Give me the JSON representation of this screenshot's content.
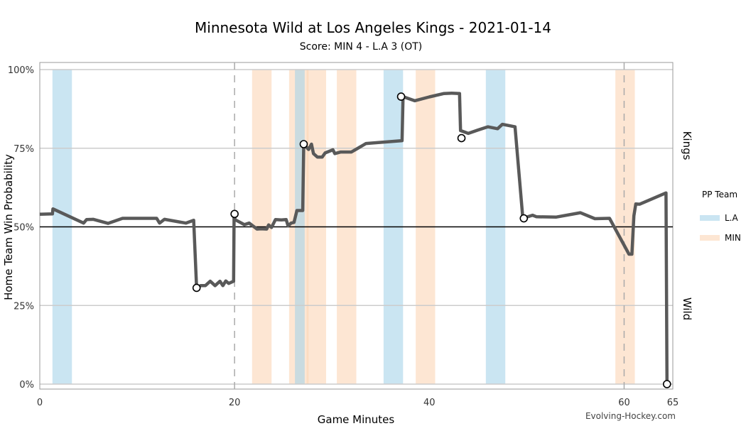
{
  "chart_data": {
    "type": "line",
    "title": "Minnesota Wild at Los Angeles Kings - 2021-01-14",
    "subtitle": "Score: MIN 4 - L.A 3 (OT)",
    "xlabel": "Game Minutes",
    "ylabel": "Home Team Win Probability",
    "xlim": [
      0,
      65
    ],
    "ylim": [
      0,
      1
    ],
    "x_ticks": [
      "0",
      "20",
      "40",
      "60",
      "65"
    ],
    "y_ticks": [
      "0%",
      "25%",
      "50%",
      "75%",
      "100%"
    ],
    "period_lines": [
      20,
      60
    ],
    "reference_line": 0.5,
    "grid": true,
    "side_labels": {
      "top": "Kings",
      "bottom": "Wild"
    },
    "legend": {
      "title": "PP Team",
      "position": "right",
      "entries": [
        {
          "label": "L.A",
          "color": "#a6d3ea"
        },
        {
          "label": "MIN",
          "color": "#fbd5b5"
        }
      ]
    },
    "power_plays": [
      {
        "team": "L.A",
        "start": 1.3,
        "end": 3.3
      },
      {
        "team": "MIN",
        "start": 21.8,
        "end": 23.8
      },
      {
        "team": "MIN",
        "start": 25.6,
        "end": 27.6
      },
      {
        "team": "L.A",
        "start": 26.2,
        "end": 27.2
      },
      {
        "team": "MIN",
        "start": 27.4,
        "end": 29.4
      },
      {
        "team": "MIN",
        "start": 30.5,
        "end": 32.5
      },
      {
        "team": "L.A",
        "start": 35.3,
        "end": 37.3
      },
      {
        "team": "MIN",
        "start": 38.6,
        "end": 40.6
      },
      {
        "team": "L.A",
        "start": 45.8,
        "end": 47.8
      },
      {
        "team": "MIN",
        "start": 59.1,
        "end": 61.1
      }
    ],
    "series": [
      {
        "line_color": "#595959",
        "x": [
          0,
          1.3,
          1.35,
          4.5,
          4.8,
          5.5,
          7,
          8.5,
          12,
          12.3,
          12.8,
          15,
          15.8,
          16.1,
          16.5,
          17,
          17.5,
          18,
          18.5,
          18.8,
          19.1,
          19.4,
          19.9,
          19.95,
          20.05,
          21,
          21.5,
          22.3,
          22.7,
          23.3,
          23.5,
          23.8,
          24.2,
          24.8,
          25.3,
          25.5,
          25.8,
          26.1,
          26.4,
          27.0,
          27.1,
          27.6,
          27.9,
          28.1,
          28.5,
          29.0,
          29.3,
          30.1,
          30.3,
          30.9,
          32,
          33.5,
          37.2,
          37.3,
          38.5,
          40,
          41.5,
          42.3,
          43.1,
          43.2,
          44,
          45,
          46,
          47,
          47.5,
          48.8,
          49.6,
          50.6,
          51,
          53,
          55.5,
          57,
          58.5,
          60.5,
          60.8,
          61.0,
          61.2,
          61.6,
          64.3,
          64.4
        ],
        "y": [
          0.54,
          0.541,
          0.557,
          0.512,
          0.523,
          0.524,
          0.511,
          0.527,
          0.527,
          0.512,
          0.524,
          0.512,
          0.521,
          0.306,
          0.313,
          0.313,
          0.327,
          0.313,
          0.327,
          0.313,
          0.328,
          0.32,
          0.327,
          0.541,
          0.523,
          0.507,
          0.512,
          0.493,
          0.494,
          0.493,
          0.506,
          0.498,
          0.523,
          0.522,
          0.523,
          0.503,
          0.512,
          0.514,
          0.552,
          0.552,
          0.763,
          0.746,
          0.763,
          0.733,
          0.722,
          0.722,
          0.735,
          0.745,
          0.733,
          0.738,
          0.738,
          0.765,
          0.774,
          0.914,
          0.901,
          0.913,
          0.924,
          0.925,
          0.924,
          0.806,
          0.797,
          0.808,
          0.818,
          0.812,
          0.826,
          0.818,
          0.527,
          0.537,
          0.532,
          0.531,
          0.545,
          0.526,
          0.527,
          0.413,
          0.413,
          0.535,
          0.573,
          0.572,
          0.608,
          0.0
        ]
      }
    ],
    "goals": [
      {
        "x": 16.1,
        "y": 0.306
      },
      {
        "x": 20.0,
        "y": 0.541
      },
      {
        "x": 27.1,
        "y": 0.763
      },
      {
        "x": 37.1,
        "y": 0.914
      },
      {
        "x": 43.3,
        "y": 0.782
      },
      {
        "x": 49.7,
        "y": 0.527
      },
      {
        "x": 64.4,
        "y": 0.0
      }
    ]
  },
  "credit": "Evolving-Hockey.com"
}
